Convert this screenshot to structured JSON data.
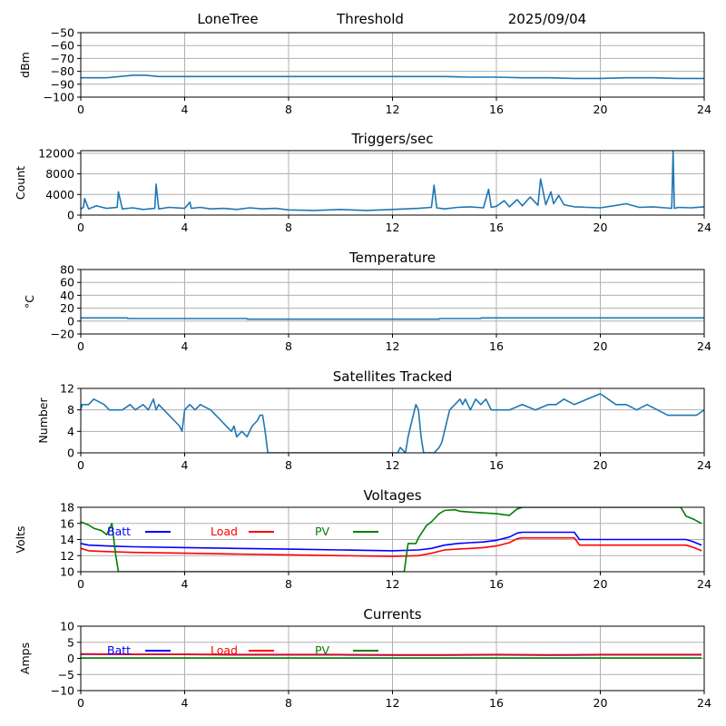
{
  "header": {
    "station": "LoneTree",
    "mode": "Threshold",
    "date": "2025/09/04"
  },
  "colors": {
    "series": "#1f77b4",
    "batt": "#0000ff",
    "load": "#ff0000",
    "pv": "#008000"
  },
  "chart_data": [
    {
      "id": "rssi",
      "type": "line",
      "title": "",
      "ylabel": "dBm",
      "xlim": [
        0,
        24
      ],
      "xticks": [
        0,
        4,
        8,
        12,
        16,
        20,
        24
      ],
      "ylim": [
        -100,
        -50
      ],
      "yticks": [
        -100,
        -90,
        -80,
        -70,
        -60,
        -50
      ],
      "ytick_labels": [
        "−100",
        "−90",
        "−80",
        "−70",
        "−60",
        "−50"
      ],
      "grid": true,
      "series": [
        {
          "x": [
            0,
            0.5,
            1,
            1.5,
            2,
            2.5,
            3,
            3.5,
            4,
            5,
            6,
            7,
            8,
            9,
            10,
            11,
            12,
            13,
            14,
            15,
            16,
            17,
            18,
            19,
            20,
            21,
            22,
            23,
            24
          ],
          "y": [
            -85,
            -85,
            -85,
            -84,
            -83,
            -83,
            -84,
            -84,
            -84,
            -84,
            -84,
            -84,
            -84,
            -84,
            -84,
            -84,
            -84,
            -84,
            -84,
            -84.5,
            -84.5,
            -85,
            -85,
            -85.5,
            -85.5,
            -85,
            -85,
            -85.5,
            -85.5
          ]
        }
      ]
    },
    {
      "id": "triggers",
      "type": "line",
      "title": "Triggers/sec",
      "ylabel": "Count",
      "xlim": [
        0,
        24
      ],
      "xticks": [
        0,
        4,
        8,
        12,
        16,
        20,
        24
      ],
      "ylim": [
        0,
        12500
      ],
      "yticks": [
        0,
        4000,
        8000,
        12000
      ],
      "ytick_labels": [
        "0",
        "4000",
        "8000",
        "12000"
      ],
      "grid": true,
      "series": [
        {
          "x": [
            0,
            0.1,
            0.15,
            0.3,
            0.6,
            1.0,
            1.4,
            1.45,
            1.6,
            2.0,
            2.4,
            2.85,
            2.9,
            3.0,
            3.4,
            4.0,
            4.2,
            4.25,
            4.6,
            5.0,
            5.5,
            6.0,
            6.5,
            7.0,
            7.5,
            8.0,
            9.0,
            10.0,
            11.0,
            12.0,
            12.5,
            13.0,
            13.5,
            13.6,
            13.7,
            14.0,
            14.5,
            15.0,
            15.5,
            15.7,
            15.8,
            16.0,
            16.3,
            16.5,
            16.8,
            17.0,
            17.3,
            17.6,
            17.7,
            17.9,
            18.1,
            18.2,
            18.4,
            18.6,
            19.0,
            19.5,
            20.0,
            20.5,
            21.0,
            21.5,
            22.0,
            22.5,
            22.75,
            22.8,
            22.85,
            23.0,
            23.5,
            24.0
          ],
          "y": [
            1200,
            1500,
            3200,
            1200,
            1800,
            1300,
            1500,
            4500,
            1200,
            1400,
            1100,
            1300,
            6000,
            1200,
            1500,
            1300,
            2500,
            1300,
            1500,
            1200,
            1300,
            1100,
            1400,
            1200,
            1300,
            1000,
            900,
            1100,
            900,
            1100,
            1200,
            1300,
            1500,
            5800,
            1400,
            1200,
            1500,
            1600,
            1400,
            5000,
            1500,
            1700,
            2800,
            1600,
            3000,
            1800,
            3500,
            1900,
            7000,
            2000,
            4500,
            2200,
            3800,
            2000,
            1600,
            1500,
            1400,
            1800,
            2200,
            1500,
            1600,
            1400,
            1300,
            12400,
            1300,
            1500,
            1400,
            1600
          ]
        }
      ]
    },
    {
      "id": "temperature",
      "type": "line",
      "title": "Temperature",
      "ylabel": "°C",
      "xlim": [
        0,
        24
      ],
      "xticks": [
        0,
        4,
        8,
        12,
        16,
        20,
        24
      ],
      "ylim": [
        -20,
        80
      ],
      "yticks": [
        -20,
        0,
        20,
        40,
        60,
        80
      ],
      "ytick_labels": [
        "−20",
        "0",
        "20",
        "40",
        "60",
        "80"
      ],
      "grid": true,
      "series": [
        {
          "x": [
            0,
            1.8,
            1.81,
            6.4,
            6.41,
            13.8,
            13.81,
            15.4,
            15.41,
            24
          ],
          "y": [
            5,
            5,
            4,
            4,
            3,
            3,
            4,
            4,
            5,
            5
          ]
        }
      ]
    },
    {
      "id": "satellites",
      "type": "line",
      "title": "Satellites Tracked",
      "ylabel": "Number",
      "xlim": [
        0,
        24
      ],
      "xticks": [
        0,
        4,
        8,
        12,
        16,
        20,
        24
      ],
      "ylim": [
        0,
        12
      ],
      "yticks": [
        0,
        4,
        8,
        12
      ],
      "ytick_labels": [
        "0",
        "4",
        "8",
        "12"
      ],
      "grid": true,
      "series": [
        {
          "x": [
            0,
            0.05,
            0.1,
            0.3,
            0.5,
            0.9,
            1.1,
            1.6,
            1.9,
            2.1,
            2.4,
            2.6,
            2.8,
            2.9,
            3.0,
            3.2,
            3.4,
            3.6,
            3.8,
            3.9,
            4.0,
            4.2,
            4.4,
            4.6,
            5.0,
            5.2,
            5.4,
            5.6,
            5.8,
            5.9,
            6.0,
            6.2,
            6.4,
            6.6,
            6.8,
            6.9,
            7.0,
            7.1,
            7.2,
            12.2,
            12.3,
            12.5,
            12.6,
            12.7,
            12.8,
            12.9,
            13.0,
            13.1,
            13.2,
            13.3,
            13.4,
            13.6,
            13.8,
            13.9,
            14.0,
            14.2,
            14.4,
            14.6,
            14.7,
            14.8,
            15.0,
            15.2,
            15.4,
            15.6,
            15.8,
            16.0,
            16.5,
            17.0,
            17.5,
            18.0,
            18.3,
            18.6,
            19.0,
            19.5,
            20.0,
            20.3,
            20.6,
            21.0,
            21.4,
            21.8,
            22.2,
            22.6,
            23.0,
            23.4,
            23.7,
            24.0
          ],
          "y": [
            8,
            9,
            9,
            9,
            10,
            9,
            8,
            8,
            9,
            8,
            9,
            8,
            10,
            8,
            9,
            8,
            7,
            6,
            5,
            4,
            8,
            9,
            8,
            9,
            8,
            7,
            6,
            5,
            4,
            5,
            3,
            4,
            3,
            5,
            6,
            7,
            7,
            4,
            0,
            0,
            1,
            0,
            3,
            5,
            7,
            9,
            8,
            3,
            0,
            0,
            0,
            0,
            1,
            2,
            4,
            8,
            9,
            10,
            9,
            10,
            8,
            10,
            9,
            10,
            8,
            8,
            8,
            9,
            8,
            9,
            9,
            10,
            9,
            10,
            11,
            10,
            9,
            9,
            8,
            9,
            8,
            7,
            7,
            7,
            7,
            8
          ]
        }
      ]
    },
    {
      "id": "voltages",
      "type": "line",
      "title": "Voltages",
      "ylabel": "Volts",
      "xlim": [
        0,
        24
      ],
      "xticks": [
        0,
        4,
        8,
        12,
        16,
        20,
        24
      ],
      "ylim": [
        10,
        18
      ],
      "yticks": [
        10,
        12,
        14,
        16,
        18
      ],
      "ytick_labels": [
        "10",
        "12",
        "14",
        "16",
        "18"
      ],
      "grid": true,
      "series": [
        {
          "name": "Batt",
          "color": "#0000ff",
          "x": [
            0,
            0.3,
            1,
            2,
            4,
            6,
            8,
            10,
            12,
            13,
            13.5,
            14,
            14.5,
            15,
            15.5,
            16,
            16.5,
            16.8,
            17,
            18,
            19,
            19.2,
            20,
            21,
            22,
            23,
            23.3,
            23.6,
            23.9
          ],
          "y": [
            13.5,
            13.3,
            13.2,
            13.1,
            13.0,
            12.9,
            12.8,
            12.7,
            12.6,
            12.7,
            12.9,
            13.3,
            13.5,
            13.6,
            13.7,
            13.9,
            14.3,
            14.8,
            14.9,
            14.9,
            14.9,
            14.0,
            14.0,
            14.0,
            14.0,
            14.0,
            14.0,
            13.7,
            13.3
          ]
        },
        {
          "name": "Load",
          "color": "#ff0000",
          "x": [
            0,
            0.3,
            1,
            2,
            4,
            6,
            8,
            10,
            12,
            13,
            13.5,
            14,
            14.5,
            15,
            15.5,
            16,
            16.5,
            16.8,
            17,
            18,
            19,
            19.2,
            20,
            21,
            22,
            23,
            23.3,
            23.6,
            23.9
          ],
          "y": [
            12.9,
            12.6,
            12.5,
            12.4,
            12.3,
            12.2,
            12.1,
            12.0,
            11.9,
            12.0,
            12.3,
            12.7,
            12.8,
            12.9,
            13.0,
            13.2,
            13.6,
            14.1,
            14.2,
            14.2,
            14.2,
            13.3,
            13.3,
            13.3,
            13.3,
            13.3,
            13.3,
            13.0,
            12.6
          ]
        },
        {
          "name": "PV",
          "color": "#008000",
          "x": [
            0,
            0.3,
            0.5,
            0.8,
            1.0,
            1.2,
            1.35,
            1.45,
            12.45,
            12.6,
            12.9,
            13.0,
            13.3,
            13.5,
            13.8,
            14.0,
            14.4,
            14.6,
            15.0,
            16.0,
            16.5,
            16.8,
            17.0,
            23.1,
            23.3,
            23.6,
            23.9
          ],
          "y": [
            16.2,
            15.8,
            15.4,
            15.1,
            14.6,
            16.0,
            12.0,
            10.0,
            10.0,
            13.5,
            13.5,
            14.2,
            15.7,
            16.2,
            17.2,
            17.6,
            17.7,
            17.5,
            17.4,
            17.2,
            17.0,
            17.8,
            18.0,
            18.0,
            16.9,
            16.5,
            16.0
          ]
        }
      ]
    },
    {
      "id": "currents",
      "type": "line",
      "title": "Currents",
      "ylabel": "Amps",
      "xlim": [
        0,
        24
      ],
      "xticks": [
        0,
        4,
        8,
        12,
        16,
        20,
        24
      ],
      "ylim": [
        -10,
        10
      ],
      "yticks": [
        -10,
        -5,
        0,
        5,
        10
      ],
      "ytick_labels": [
        "−10",
        "−5",
        "0",
        "5",
        "10"
      ],
      "grid": true,
      "series": [
        {
          "name": "Batt",
          "color": "#0000ff",
          "x": [
            0,
            2,
            4,
            6,
            8,
            10,
            12,
            14,
            16,
            18,
            20,
            22,
            23.9
          ],
          "y": [
            1.3,
            1.2,
            1.2,
            1.1,
            1.1,
            1.1,
            1.0,
            1.0,
            1.1,
            1.0,
            1.1,
            1.1,
            1.1
          ]
        },
        {
          "name": "Load",
          "color": "#ff0000",
          "x": [
            0,
            2,
            4,
            6,
            8,
            10,
            12,
            14,
            16,
            18,
            20,
            22,
            23.9
          ],
          "y": [
            1.4,
            1.3,
            1.3,
            1.2,
            1.2,
            1.2,
            1.1,
            1.1,
            1.2,
            1.1,
            1.2,
            1.2,
            1.2
          ]
        },
        {
          "name": "PV",
          "color": "#008000",
          "x": [
            0,
            23.9
          ],
          "y": [
            0.1,
            0.1
          ]
        }
      ]
    }
  ]
}
